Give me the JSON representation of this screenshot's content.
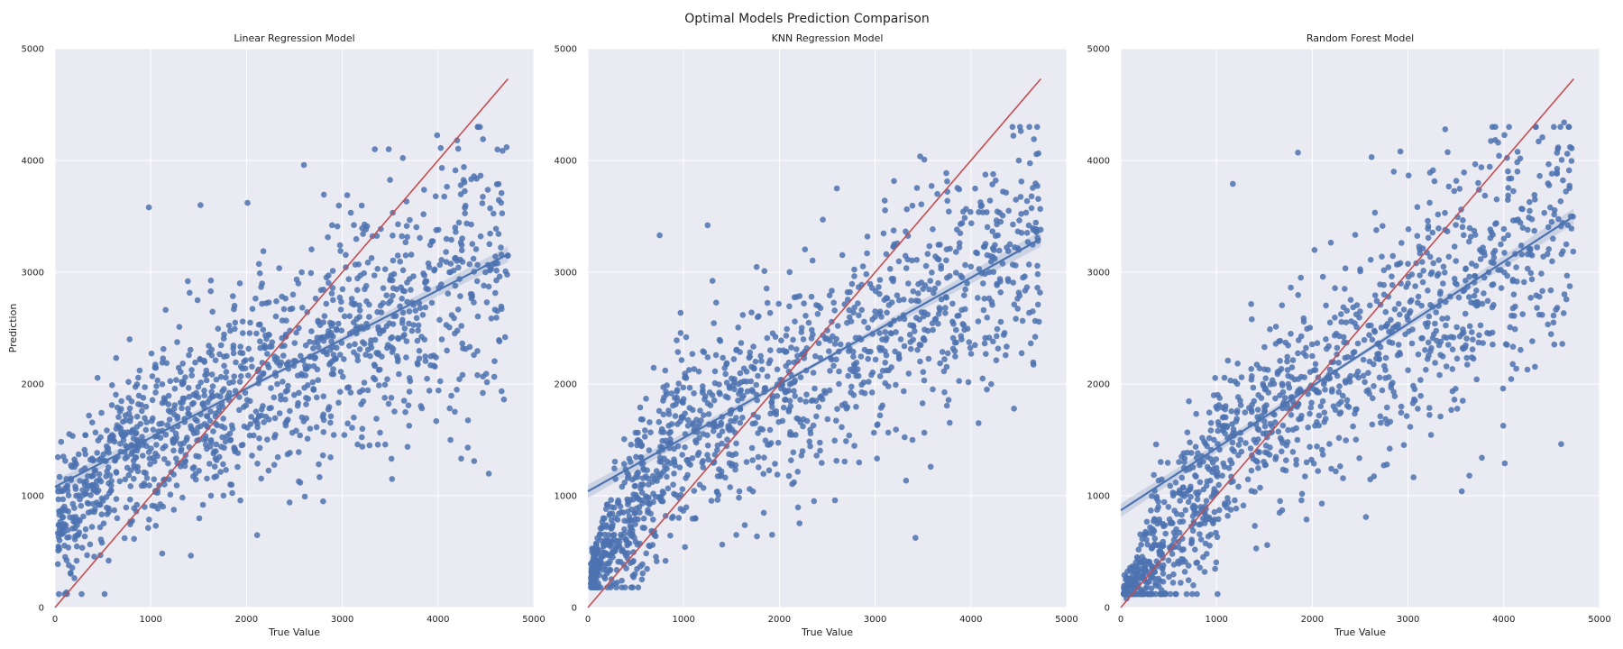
{
  "figure": {
    "title": "Optimal Models Prediction Comparison"
  },
  "colors": {
    "panel_bg": "#eaeaf2",
    "grid": "#ffffff",
    "points": "#4c72b0",
    "fit_line": "#4c72b0",
    "identity_line": "#c44e52"
  },
  "chart_data": [
    {
      "type": "scatter",
      "title": "Linear Regression Model",
      "xlabel": "True Value",
      "ylabel": "Prediction",
      "xlim": [
        0,
        5000
      ],
      "ylim": [
        0,
        5000
      ],
      "xticks": [
        0,
        1000,
        2000,
        3000,
        4000,
        5000
      ],
      "yticks": [
        0,
        1000,
        2000,
        3000,
        4000,
        5000
      ],
      "grid": true,
      "x_range": [
        30,
        4730
      ],
      "regression_fit": {
        "x0": 0,
        "y0": 1080,
        "x1": 4730,
        "y1": 3160
      },
      "identity_line": {
        "x0": 0,
        "y0": 0,
        "x1": 4730,
        "y1": 4730
      },
      "series": [
        {
          "points": [
            [
              120,
              1150
            ],
            [
              210,
              1300
            ],
            [
              420,
              1230
            ],
            [
              640,
              1600
            ],
            [
              870,
              1820
            ],
            [
              1120,
              1580
            ],
            [
              1350,
              1870
            ],
            [
              1580,
              2120
            ],
            [
              1820,
              2010
            ],
            [
              2050,
              2220
            ],
            [
              2300,
              2100
            ],
            [
              2520,
              2460
            ],
            [
              2750,
              2330
            ],
            [
              2960,
              2540
            ],
            [
              3180,
              2600
            ],
            [
              3400,
              2700
            ],
            [
              3650,
              2830
            ],
            [
              3880,
              2920
            ],
            [
              4120,
              3000
            ],
            [
              4370,
              3120
            ],
            [
              4600,
              3140
            ],
            [
              320,
              700
            ],
            [
              560,
              420
            ],
            [
              780,
              2400
            ],
            [
              980,
              3580
            ],
            [
              1520,
              3600
            ],
            [
              2010,
              3620
            ],
            [
              2600,
              3960
            ],
            [
              3340,
              4100
            ],
            [
              4200,
              4180
            ],
            [
              4470,
              4190
            ],
            [
              3520,
              1150
            ],
            [
              4130,
              1500
            ],
            [
              2800,
              950
            ],
            [
              2450,
              940
            ]
          ]
        }
      ]
    },
    {
      "type": "scatter",
      "title": "KNN Regression Model",
      "xlabel": "True Value",
      "ylabel": "",
      "xlim": [
        0,
        5000
      ],
      "ylim": [
        0,
        5000
      ],
      "xticks": [
        0,
        1000,
        2000,
        3000,
        4000,
        5000
      ],
      "yticks": [
        0,
        1000,
        2000,
        3000,
        4000,
        5000
      ],
      "grid": true,
      "x_range": [
        30,
        4730
      ],
      "regression_fit": {
        "x0": 0,
        "y0": 1040,
        "x1": 4730,
        "y1": 3300
      },
      "identity_line": {
        "x0": 0,
        "y0": 0,
        "x1": 4730,
        "y1": 4730
      },
      "series": [
        {
          "points": [
            [
              90,
              300
            ],
            [
              180,
              260
            ],
            [
              260,
              450
            ],
            [
              380,
              700
            ],
            [
              520,
              980
            ],
            [
              700,
              1150
            ],
            [
              900,
              1420
            ],
            [
              1100,
              1650
            ],
            [
              1300,
              1900
            ],
            [
              1500,
              2050
            ],
            [
              1750,
              2200
            ],
            [
              2000,
              2300
            ],
            [
              2250,
              2400
            ],
            [
              2500,
              2480
            ],
            [
              2750,
              2560
            ],
            [
              3000,
              2650
            ],
            [
              3250,
              2750
            ],
            [
              3500,
              2850
            ],
            [
              3750,
              2950
            ],
            [
              4000,
              3050
            ],
            [
              4250,
              3120
            ],
            [
              4500,
              3200
            ],
            [
              4700,
              3280
            ],
            [
              750,
              3330
            ],
            [
              1250,
              3420
            ],
            [
              2600,
              3750
            ],
            [
              3650,
              3700
            ],
            [
              3100,
              3640
            ],
            [
              4200,
              3640
            ],
            [
              2580,
              960
            ],
            [
              3580,
              1260
            ],
            [
              4080,
              1650
            ],
            [
              1550,
              650
            ],
            [
              4450,
              1780
            ]
          ]
        }
      ]
    },
    {
      "type": "scatter",
      "title": "Random Forest Model",
      "xlabel": "True Value",
      "ylabel": "",
      "xlim": [
        0,
        5000
      ],
      "ylim": [
        0,
        5000
      ],
      "xticks": [
        0,
        1000,
        2000,
        3000,
        4000,
        5000
      ],
      "yticks": [
        0,
        1000,
        2000,
        3000,
        4000,
        5000
      ],
      "grid": true,
      "x_range": [
        30,
        4730
      ],
      "regression_fit": {
        "x0": 0,
        "y0": 870,
        "x1": 4730,
        "y1": 3500
      },
      "identity_line": {
        "x0": 0,
        "y0": 0,
        "x1": 4730,
        "y1": 4730
      },
      "series": [
        {
          "points": [
            [
              60,
              80
            ],
            [
              150,
              200
            ],
            [
              260,
              330
            ],
            [
              400,
              500
            ],
            [
              580,
              700
            ],
            [
              780,
              900
            ],
            [
              1000,
              1250
            ],
            [
              1250,
              1500
            ],
            [
              1500,
              1750
            ],
            [
              1750,
              2000
            ],
            [
              2000,
              2250
            ],
            [
              2250,
              2450
            ],
            [
              2500,
              2650
            ],
            [
              2750,
              2800
            ],
            [
              3000,
              2900
            ],
            [
              3250,
              3000
            ],
            [
              3500,
              3100
            ],
            [
              3750,
              3200
            ],
            [
              4000,
              3300
            ],
            [
              4250,
              3380
            ],
            [
              4500,
              3450
            ],
            [
              4700,
              3500
            ],
            [
              1850,
              4070
            ],
            [
              2620,
              4030
            ],
            [
              2920,
              4080
            ],
            [
              4630,
              4340
            ],
            [
              1170,
              3790
            ],
            [
              3230,
              3890
            ],
            [
              2560,
              810
            ],
            [
              3640,
              1180
            ],
            [
              4010,
              1290
            ],
            [
              2100,
              930
            ],
            [
              2780,
              1280
            ]
          ]
        }
      ]
    }
  ]
}
